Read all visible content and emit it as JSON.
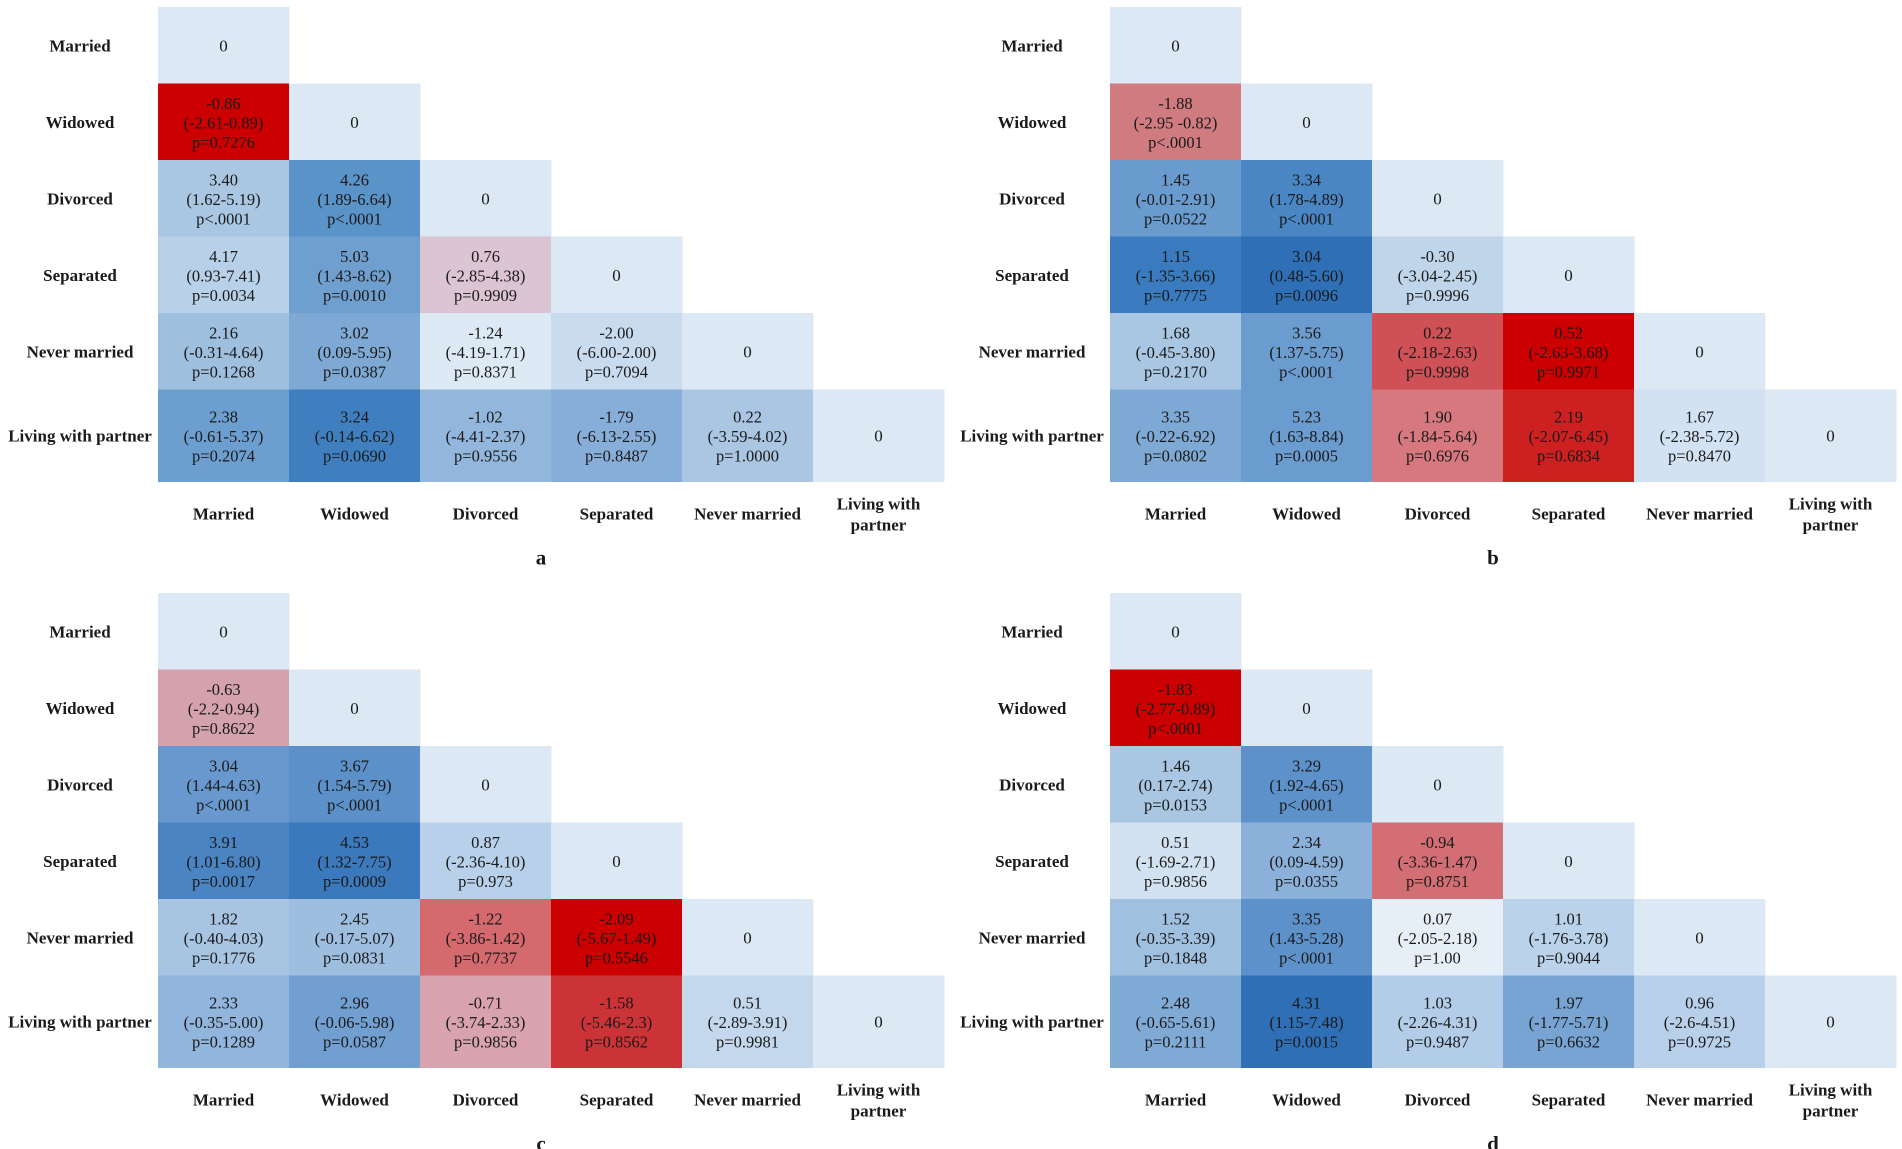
{
  "chart_data": [
    {
      "type": "heatmap",
      "panel_label": "a",
      "row_labels": [
        "Married",
        "Widowed",
        "Divorced",
        "Separated",
        "Never married",
        "Living with partner"
      ],
      "col_labels": [
        "Married",
        "Widowed",
        "Divorced",
        "Separated",
        "Never married",
        "Living with\npartner"
      ],
      "cells": [
        [
          {
            "value": "0",
            "sign": 0
          }
        ],
        [
          {
            "value": "-0.86",
            "ci": "(-2.61-0.89)",
            "p": "p=0.7276",
            "color": "#cc0000"
          },
          {
            "value": "0",
            "sign": 0
          }
        ],
        [
          {
            "value": "3.40",
            "ci": "(1.62-5.19)",
            "p": "p<.0001",
            "color": "#a9c7e2"
          },
          {
            "value": "4.26",
            "ci": "(1.89-6.64)",
            "p": "p<.0001",
            "color": "#5a93c8"
          },
          {
            "value": "0",
            "sign": 0
          }
        ],
        [
          {
            "value": "4.17",
            "ci": "(0.93-7.41)",
            "p": "p=0.0034",
            "color": "#b8d1e8"
          },
          {
            "value": "5.03",
            "ci": "(1.43-8.62)",
            "p": "p=0.0010",
            "color": "#6f9fcf"
          },
          {
            "value": "0.76",
            "ci": "(-2.85-4.38)",
            "p": "p=0.9909",
            "color": "#dcc5d2"
          },
          {
            "value": "0",
            "sign": 0
          }
        ],
        [
          {
            "value": "2.16",
            "ci": "(-0.31-4.64)",
            "p": "p=0.1268",
            "color": "#9fbfdf"
          },
          {
            "value": "3.02",
            "ci": "(0.09-5.95)",
            "p": "p=0.0387",
            "color": "#7da9d4"
          },
          {
            "value": "-1.24",
            "ci": "(-4.19-1.71)",
            "p": "p=0.8371",
            "color": "#dde9f5"
          },
          {
            "value": "-2.00",
            "ci": "(-6.00-2.00)",
            "p": "p=0.7094",
            "color": "#c9dbee"
          },
          {
            "value": "0",
            "sign": 0
          }
        ],
        [
          {
            "value": "2.38",
            "ci": "(-0.61-5.37)",
            "p": "p=0.2074",
            "color": "#6d9ed0"
          },
          {
            "value": "3.24",
            "ci": "(-0.14-6.62)",
            "p": "p=0.0690",
            "color": "#3f7fc0"
          },
          {
            "value": "-1.02",
            "ci": "(-4.41-2.37)",
            "p": "p=0.9556",
            "color": "#93b6dc"
          },
          {
            "value": "-1.79",
            "ci": "(-6.13-2.55)",
            "p": "p=0.8487",
            "color": "#87aed8"
          },
          {
            "value": "0.22",
            "ci": "(-3.59-4.02)",
            "p": "p=1.0000",
            "color": "#aac6e3"
          },
          {
            "value": "0",
            "sign": 0
          }
        ]
      ]
    },
    {
      "type": "heatmap",
      "panel_label": "b",
      "row_labels": [
        "Married",
        "Widowed",
        "Divorced",
        "Separated",
        "Never married",
        "Living with partner"
      ],
      "col_labels": [
        "Married",
        "Widowed",
        "Divorced",
        "Separated",
        "Never married",
        "Living with\npartner"
      ],
      "cells": [
        [
          {
            "value": "0",
            "sign": 0
          }
        ],
        [
          {
            "value": "-1.88",
            "ci": "(-2.95 -0.82)",
            "p": "p<.0001",
            "color": "#d07b80"
          },
          {
            "value": "0",
            "sign": 0
          }
        ],
        [
          {
            "value": "1.45",
            "ci": "(-0.01-2.91)",
            "p": "p=0.0522",
            "color": "#6a9bce"
          },
          {
            "value": "3.34",
            "ci": "(1.78-4.89)",
            "p": "p<.0001",
            "color": "#4a86c4"
          },
          {
            "value": "0",
            "sign": 0
          }
        ],
        [
          {
            "value": "1.15",
            "ci": "(-1.35-3.66)",
            "p": "p=0.7775",
            "color": "#3a7bbf"
          },
          {
            "value": "3.04",
            "ci": "(0.48-5.60)",
            "p": "p=0.0096",
            "color": "#2e6fb6"
          },
          {
            "value": "-0.30",
            "ci": "(-3.04-2.45)",
            "p": "p=0.9996",
            "color": "#bfd5ea"
          },
          {
            "value": "0",
            "sign": 0
          }
        ],
        [
          {
            "value": "1.68",
            "ci": "(-0.45-3.80)",
            "p": "p=0.2170",
            "color": "#a9c7e2"
          },
          {
            "value": "3.56",
            "ci": "(1.37-5.75)",
            "p": "p<.0001",
            "color": "#6b9ccf"
          },
          {
            "value": "0.22",
            "ci": "(-2.18-2.63)",
            "p": "p=0.9998",
            "color": "#cf5055"
          },
          {
            "value": "0.52",
            "ci": "(-2.63-3.68)",
            "p": "p=0.9971",
            "color": "#cc0000"
          },
          {
            "value": "0",
            "sign": 0
          }
        ],
        [
          {
            "value": "3.35",
            "ci": "(-0.22-6.92)",
            "p": "p=0.0802",
            "color": "#7ea9d5"
          },
          {
            "value": "5.23",
            "ci": "(1.63-8.84)",
            "p": "p=0.0005",
            "color": "#6b9ccf"
          },
          {
            "value": "1.90",
            "ci": "(-1.84-5.64)",
            "p": "p=0.6976",
            "color": "#d6787d"
          },
          {
            "value": "2.19",
            "ci": "(-2.07-6.45)",
            "p": "p=0.6834",
            "color": "#cd2020"
          },
          {
            "value": "1.67",
            "ci": "(-2.38-5.72)",
            "p": "p=0.8470",
            "color": "#d2e2f2"
          },
          {
            "value": "0",
            "sign": 0
          }
        ]
      ]
    },
    {
      "type": "heatmap",
      "panel_label": "c",
      "row_labels": [
        "Married",
        "Widowed",
        "Divorced",
        "Separated",
        "Never married",
        "Living with partner"
      ],
      "col_labels": [
        "Married",
        "Widowed",
        "Divorced",
        "Separated",
        "Never married",
        "Living with\npartner"
      ],
      "cells": [
        [
          {
            "value": "0",
            "sign": 0
          }
        ],
        [
          {
            "value": "-0.63",
            "ci": "(-2.2-0.94)",
            "p": "p=0.8622",
            "color": "#d4a2ad"
          },
          {
            "value": "0",
            "sign": 0
          }
        ],
        [
          {
            "value": "3.04",
            "ci": "(1.44-4.63)",
            "p": "p<.0001",
            "color": "#6898cd"
          },
          {
            "value": "3.67",
            "ci": "(1.54-5.79)",
            "p": "p<.0001",
            "color": "#5b90c8"
          },
          {
            "value": "0",
            "sign": 0
          }
        ],
        [
          {
            "value": "3.91",
            "ci": "(1.01-6.80)",
            "p": "p=0.0017",
            "color": "#4a84c2"
          },
          {
            "value": "4.53",
            "ci": "(1.32-7.75)",
            "p": "p=0.0009",
            "color": "#3b78bc"
          },
          {
            "value": "0.87",
            "ci": "(-2.36-4.10)",
            "p": "p=0.973",
            "color": "#b8d0e9"
          },
          {
            "value": "0",
            "sign": 0
          }
        ],
        [
          {
            "value": "1.82",
            "ci": "(-0.40-4.03)",
            "p": "p=0.1776",
            "color": "#a7c4e2"
          },
          {
            "value": "2.45",
            "ci": "(-0.17-5.07)",
            "p": "p=0.0831",
            "color": "#9dbedf"
          },
          {
            "value": "-1.22",
            "ci": "(-3.86-1.42)",
            "p": "p=0.7737",
            "color": "#d4696e"
          },
          {
            "value": "-2.09",
            "ci": "(-5.67-1.49)",
            "p": "p=0.5546",
            "color": "#cc0000"
          },
          {
            "value": "0",
            "sign": 0
          }
        ],
        [
          {
            "value": "2.33",
            "ci": "(-0.35-5.00)",
            "p": "p=0.1289",
            "color": "#91b5dc"
          },
          {
            "value": "2.96",
            "ci": "(-0.06-5.98)",
            "p": "p=0.0587",
            "color": "#719fd1"
          },
          {
            "value": "-0.71",
            "ci": "(-3.74-2.33)",
            "p": "p=0.9856",
            "color": "#d8a3ad"
          },
          {
            "value": "-1.58",
            "ci": "(-5.46-2.3)",
            "p": "p=0.8562",
            "color": "#cc3336"
          },
          {
            "value": "0.51",
            "ci": "(-2.89-3.91)",
            "p": "p=0.9981",
            "color": "#c3d8ed"
          },
          {
            "value": "0",
            "sign": 0
          }
        ]
      ]
    },
    {
      "type": "heatmap",
      "panel_label": "d",
      "row_labels": [
        "Married",
        "Widowed",
        "Divorced",
        "Separated",
        "Never married",
        "Living with partner"
      ],
      "col_labels": [
        "Married",
        "Widowed",
        "Divorced",
        "Separated",
        "Never married",
        "Living with\npartner"
      ],
      "cells": [
        [
          {
            "value": "0",
            "sign": 0
          }
        ],
        [
          {
            "value": "-1.83",
            "ci": "(-2.77-0.89)",
            "p": "p<.0001",
            "color": "#cc0000"
          },
          {
            "value": "0",
            "sign": 0
          }
        ],
        [
          {
            "value": "1.46",
            "ci": "(0.17-2.74)",
            "p": "p=0.0153",
            "color": "#a9c6e2"
          },
          {
            "value": "3.29",
            "ci": "(1.92-4.65)",
            "p": "p<.0001",
            "color": "#5d91c9"
          },
          {
            "value": "0",
            "sign": 0
          }
        ],
        [
          {
            "value": "0.51",
            "ci": "(-1.69-2.71)",
            "p": "p=0.9856",
            "color": "#d3e2f1"
          },
          {
            "value": "2.34",
            "ci": "(0.09-4.59)",
            "p": "p=0.0355",
            "color": "#8bb0d9"
          },
          {
            "value": "-0.94",
            "ci": "(-3.36-1.47)",
            "p": "p=0.8751",
            "color": "#d36f74"
          },
          {
            "value": "0",
            "sign": 0
          }
        ],
        [
          {
            "value": "1.52",
            "ci": "(-0.35-3.39)",
            "p": "p=0.1848",
            "color": "#a0c0e0"
          },
          {
            "value": "3.35",
            "ci": "(1.43-5.28)",
            "p": "p<.0001",
            "color": "#5d91c9"
          },
          {
            "value": "0.07",
            "ci": "(-2.05-2.18)",
            "p": "p=1.00",
            "color": "#e6eff8"
          },
          {
            "value": "1.01",
            "ci": "(-1.76-3.78)",
            "p": "p=0.9044",
            "color": "#bad2ea"
          },
          {
            "value": "0",
            "sign": 0
          }
        ],
        [
          {
            "value": "2.48",
            "ci": "(-0.65-5.61)",
            "p": "p=0.2111",
            "color": "#80aad6"
          },
          {
            "value": "4.31",
            "ci": "(1.15-7.48)",
            "p": "p=0.0015",
            "color": "#2e6fb6"
          },
          {
            "value": "1.03",
            "ci": "(-2.26-4.31)",
            "p": "p=0.9487",
            "color": "#b3cde8"
          },
          {
            "value": "1.97",
            "ci": "(-1.77-5.71)",
            "p": "p=0.6632",
            "color": "#78a4d3"
          },
          {
            "value": "0.96",
            "ci": "(-2.6-4.51)",
            "p": "p=0.9725",
            "color": "#b8d0e9"
          },
          {
            "value": "0",
            "sign": 0
          }
        ]
      ]
    }
  ],
  "colors": {
    "diagonal": "#dce8f4",
    "text": "#1a1a1a",
    "background": "#ffffff"
  }
}
